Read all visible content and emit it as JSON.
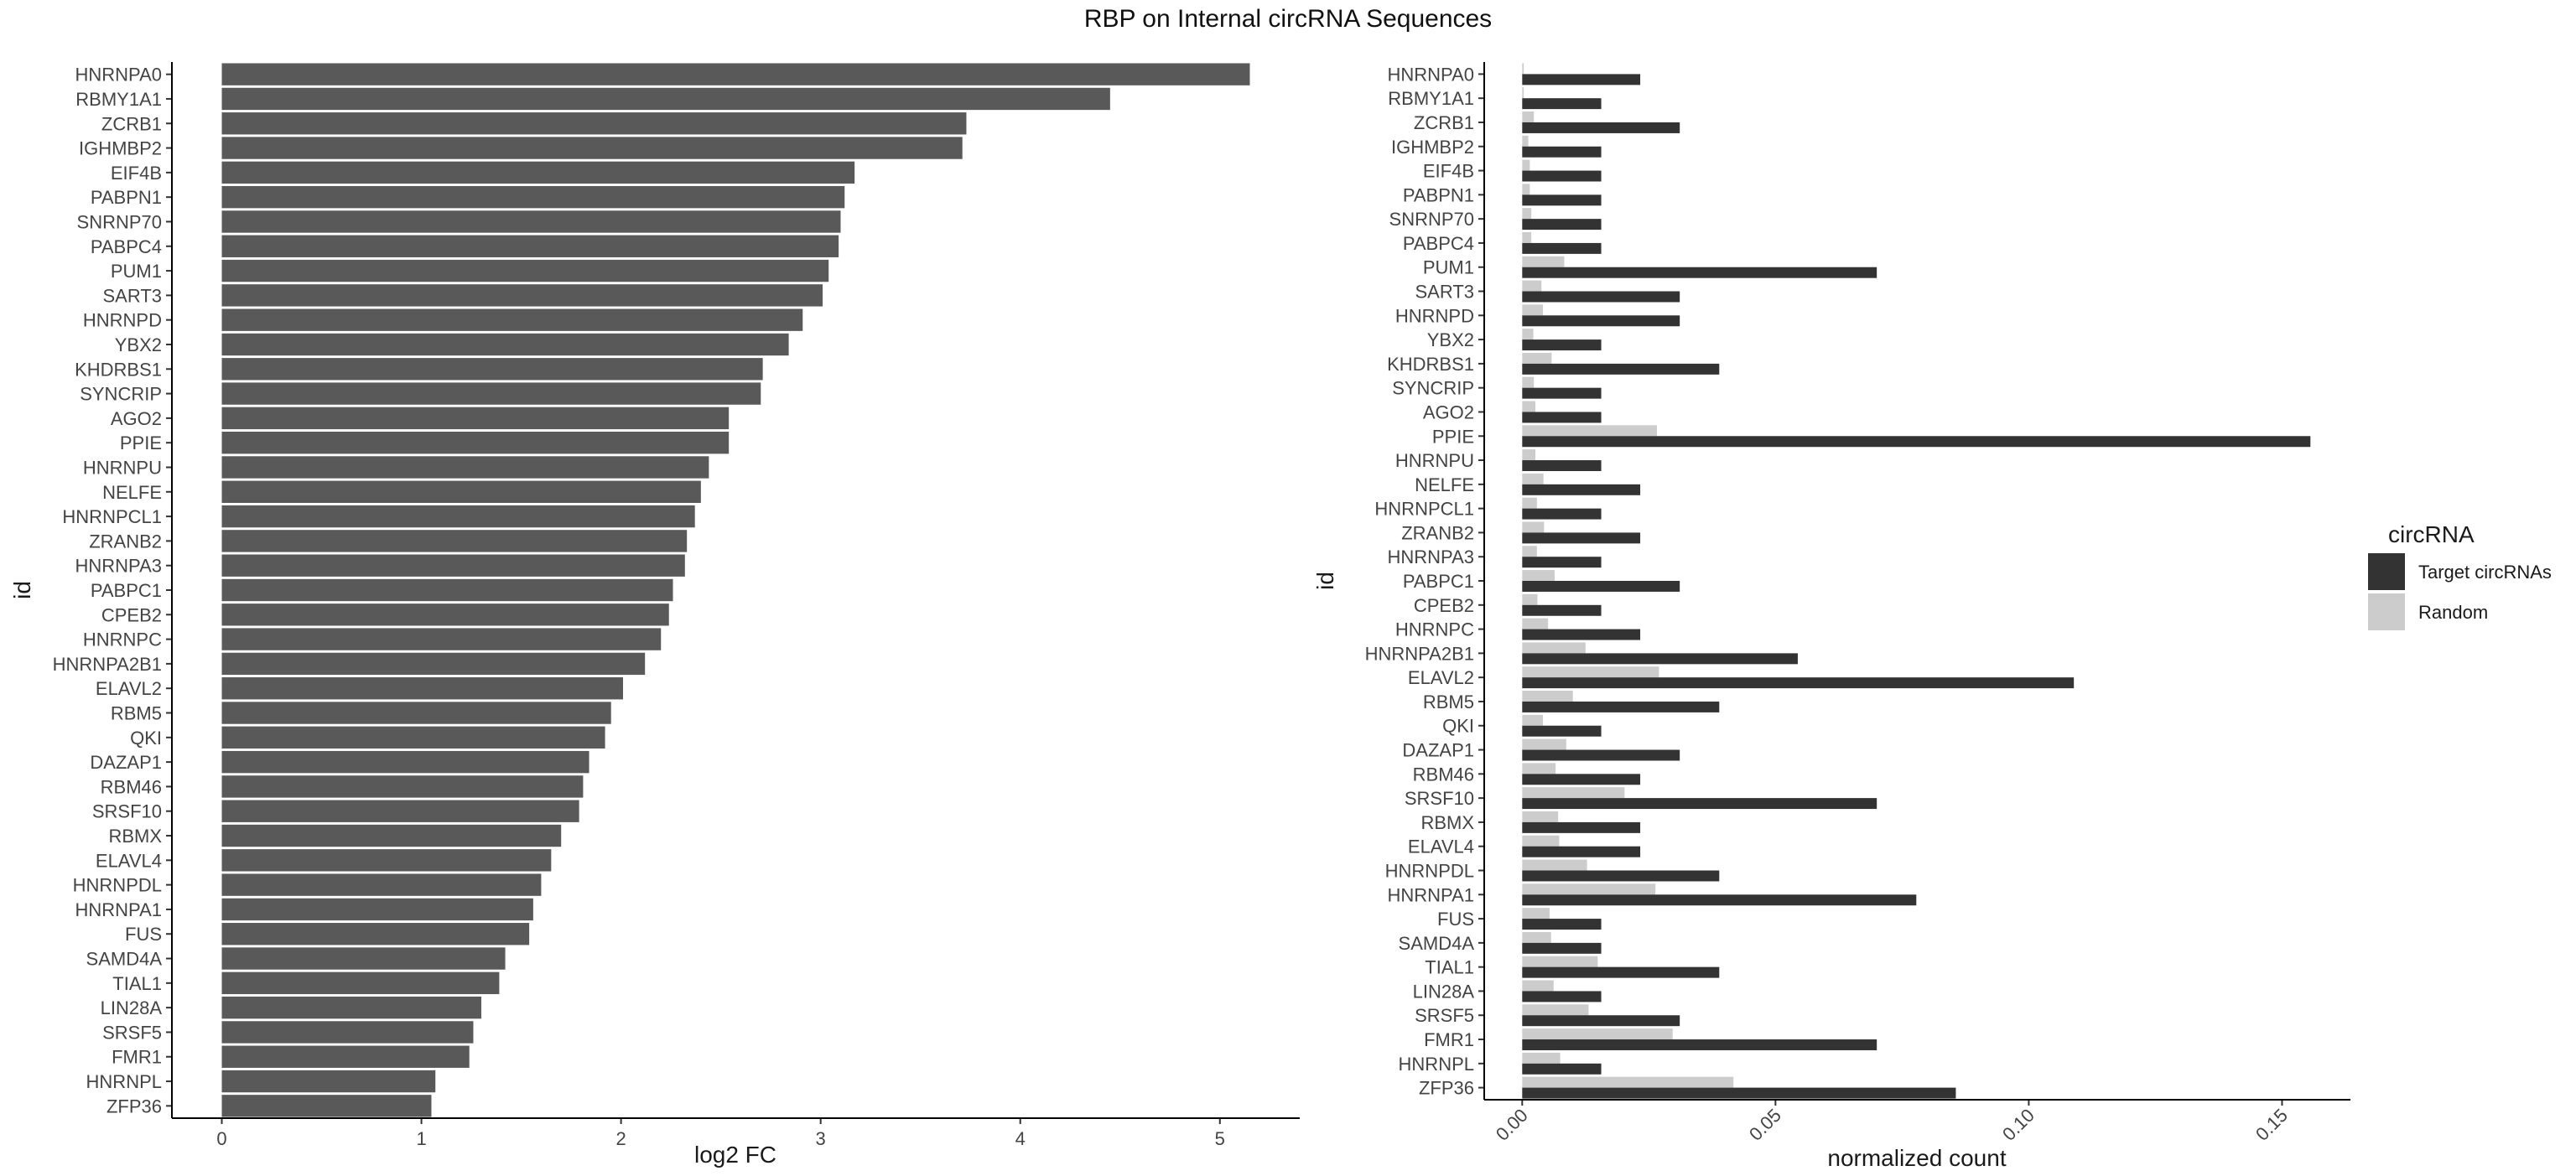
{
  "title": "RBP on Internal circRNA Sequences",
  "colors": {
    "fc_bar": "#595959",
    "target": "#333333",
    "random": "#cccccc",
    "axis": "#000000"
  },
  "chart_data": [
    {
      "type": "bar",
      "orientation": "horizontal",
      "xlabel": "log2 FC",
      "ylabel": "id",
      "xlim": [
        -0.25,
        5.4
      ],
      "xticks": [
        0,
        1,
        2,
        3,
        4,
        5
      ],
      "grid": false,
      "categories": [
        "HNRNPA0",
        "RBMY1A1",
        "ZCRB1",
        "IGHMBP2",
        "EIF4B",
        "PABPN1",
        "SNRNP70",
        "PABPC4",
        "PUM1",
        "SART3",
        "HNRNPD",
        "YBX2",
        "KHDRBS1",
        "SYNCRIP",
        "AGO2",
        "PPIE",
        "HNRNPU",
        "NELFE",
        "HNRNPCL1",
        "ZRANB2",
        "HNRNPA3",
        "PABPC1",
        "CPEB2",
        "HNRNPC",
        "HNRNPA2B1",
        "ELAVL2",
        "RBM5",
        "QKI",
        "DAZAP1",
        "RBM46",
        "SRSF10",
        "RBMX",
        "ELAVL4",
        "HNRNPDL",
        "HNRNPA1",
        "FUS",
        "SAMD4A",
        "TIAL1",
        "LIN28A",
        "SRSF5",
        "FMR1",
        "HNRNPL",
        "ZFP36"
      ],
      "values": [
        5.15,
        4.45,
        3.73,
        3.71,
        3.17,
        3.12,
        3.1,
        3.09,
        3.04,
        3.01,
        2.91,
        2.84,
        2.71,
        2.7,
        2.54,
        2.54,
        2.44,
        2.4,
        2.37,
        2.33,
        2.32,
        2.26,
        2.24,
        2.2,
        2.12,
        2.01,
        1.95,
        1.92,
        1.84,
        1.81,
        1.79,
        1.7,
        1.65,
        1.6,
        1.56,
        1.54,
        1.42,
        1.39,
        1.3,
        1.26,
        1.24,
        1.07,
        1.05
      ]
    },
    {
      "type": "bar",
      "orientation": "horizontal",
      "grouped": true,
      "xlabel": "normalized count",
      "ylabel": "id",
      "xlim": [
        -0.0075,
        0.1635
      ],
      "xticks": [
        0,
        0.05,
        0.1,
        0.15
      ],
      "xtick_labels": [
        "0.00",
        "0.05",
        "0.10",
        "0.15"
      ],
      "xtick_rotation": 45,
      "grid": false,
      "legend": {
        "title": "circRNA",
        "position": "right"
      },
      "categories": [
        "HNRNPA0",
        "RBMY1A1",
        "ZCRB1",
        "IGHMBP2",
        "EIF4B",
        "PABPN1",
        "SNRNP70",
        "PABPC4",
        "PUM1",
        "SART3",
        "HNRNPD",
        "YBX2",
        "KHDRBS1",
        "SYNCRIP",
        "AGO2",
        "PPIE",
        "HNRNPU",
        "NELFE",
        "HNRNPCL1",
        "ZRANB2",
        "HNRNPA3",
        "PABPC1",
        "CPEB2",
        "HNRNPC",
        "HNRNPA2B1",
        "ELAVL2",
        "RBM5",
        "QKI",
        "DAZAP1",
        "RBM46",
        "SRSF10",
        "RBMX",
        "ELAVL4",
        "HNRNPDL",
        "HNRNPA1",
        "FUS",
        "SAMD4A",
        "TIAL1",
        "LIN28A",
        "SRSF5",
        "FMR1",
        "HNRNPL",
        "ZFP36"
      ],
      "series": [
        {
          "name": "Random",
          "values": [
            0.0003,
            0.0003,
            0.0023,
            0.0012,
            0.0015,
            0.0015,
            0.0018,
            0.0018,
            0.0083,
            0.0038,
            0.0041,
            0.0022,
            0.0058,
            0.0023,
            0.0026,
            0.0266,
            0.0026,
            0.0042,
            0.0029,
            0.0043,
            0.0029,
            0.0064,
            0.003,
            0.0051,
            0.0125,
            0.027,
            0.01,
            0.0041,
            0.0087,
            0.0066,
            0.0202,
            0.0071,
            0.0073,
            0.0128,
            0.0263,
            0.0054,
            0.0057,
            0.0149,
            0.0062,
            0.0131,
            0.0297,
            0.0075,
            0.0417
          ]
        },
        {
          "name": "Target circRNAs",
          "values": [
            0.0233,
            0.0156,
            0.0311,
            0.0156,
            0.0156,
            0.0156,
            0.0156,
            0.0156,
            0.07,
            0.0311,
            0.0311,
            0.0156,
            0.0389,
            0.0156,
            0.0156,
            0.1556,
            0.0156,
            0.0233,
            0.0156,
            0.0233,
            0.0156,
            0.0311,
            0.0156,
            0.0233,
            0.0544,
            0.1089,
            0.0389,
            0.0156,
            0.0311,
            0.0233,
            0.07,
            0.0233,
            0.0233,
            0.0389,
            0.0778,
            0.0156,
            0.0156,
            0.0389,
            0.0156,
            0.0311,
            0.07,
            0.0156,
            0.0856
          ]
        }
      ]
    }
  ],
  "legend_items": [
    {
      "label": "Target circRNAs",
      "color": "#333333"
    },
    {
      "label": "Random",
      "color": "#cccccc"
    }
  ]
}
